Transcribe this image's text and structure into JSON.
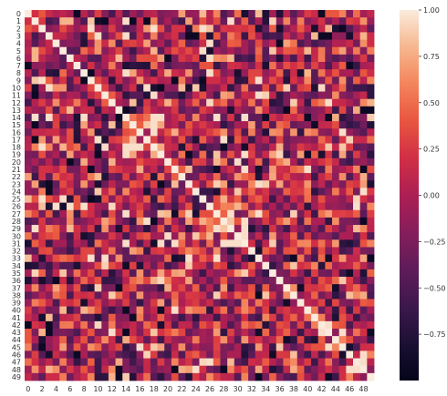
{
  "chart_data": {
    "type": "heatmap",
    "title": "",
    "xlabel": "",
    "ylabel": "",
    "n": 50,
    "x_tick_labels": [
      "0",
      "2",
      "4",
      "6",
      "8",
      "10",
      "12",
      "14",
      "16",
      "18",
      "20",
      "22",
      "24",
      "26",
      "28",
      "30",
      "32",
      "34",
      "36",
      "38",
      "40",
      "42",
      "44",
      "46",
      "48"
    ],
    "y_tick_labels": [
      "0",
      "1",
      "2",
      "3",
      "4",
      "5",
      "6",
      "7",
      "8",
      "9",
      "10",
      "11",
      "12",
      "13",
      "14",
      "15",
      "16",
      "17",
      "18",
      "19",
      "20",
      "21",
      "22",
      "23",
      "24",
      "25",
      "26",
      "27",
      "28",
      "29",
      "30",
      "31",
      "32",
      "33",
      "34",
      "35",
      "36",
      "37",
      "38",
      "39",
      "40",
      "41",
      "42",
      "43",
      "44",
      "45",
      "46",
      "47",
      "48",
      "49"
    ],
    "value_range": [
      -1.0,
      1.0
    ],
    "colormap": "rocket",
    "diagonal_value": 1.0,
    "colorbar": {
      "ticks": [
        1.0,
        0.75,
        0.5,
        0.25,
        0.0,
        -0.25,
        -0.5,
        -0.75
      ],
      "tick_labels": [
        "1.00",
        "0.75",
        "0.50",
        "0.25",
        "0.00",
        "−0.25",
        "−0.50",
        "−0.75"
      ]
    },
    "note_values": "symmetric correlation matrix; off-diagonal cells vary between about -0.9 and 0.95"
  }
}
